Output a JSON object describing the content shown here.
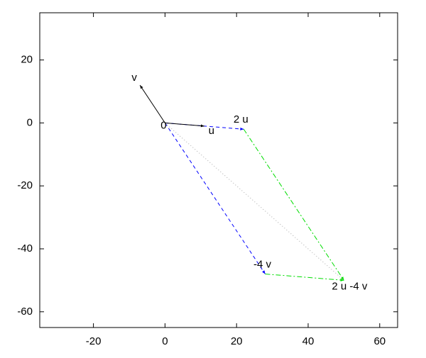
{
  "chart_data": {
    "type": "vector",
    "xlim": [
      -35,
      65
    ],
    "ylim": [
      -65,
      35
    ],
    "xticks": [
      -20,
      0,
      20,
      40,
      60
    ],
    "yticks": [
      -60,
      -40,
      -20,
      0,
      20
    ],
    "segments": [
      {
        "from": [
          0,
          0
        ],
        "to": [
          22,
          -2
        ],
        "color": "#0000ff",
        "style": "dashed",
        "arrow": true
      },
      {
        "from": [
          0,
          0
        ],
        "to": [
          28,
          -48
        ],
        "color": "#0000ff",
        "style": "dashed",
        "arrow": true
      },
      {
        "from": [
          22,
          -2
        ],
        "to": [
          50,
          -50
        ],
        "color": "#00dd00",
        "style": "dashdot",
        "arrow": true
      },
      {
        "from": [
          28,
          -48
        ],
        "to": [
          50,
          -50
        ],
        "color": "#00dd00",
        "style": "dashdot",
        "arrow": true
      },
      {
        "from": [
          0,
          0
        ],
        "to": [
          50,
          -50
        ],
        "color": "#aaaaaa",
        "style": "dotted",
        "arrow": false
      },
      {
        "from": [
          0,
          0
        ],
        "to": [
          11,
          -1
        ],
        "color": "#000000",
        "style": "solid",
        "arrow": true
      },
      {
        "from": [
          0,
          0
        ],
        "to": [
          -7,
          12
        ],
        "color": "#000000",
        "style": "solid",
        "arrow": true
      }
    ],
    "points": [
      {
        "label": "0",
        "x": 0,
        "y": 0
      },
      {
        "label": "u",
        "x": 11,
        "y": -1
      },
      {
        "label": "v",
        "x": -7,
        "y": 12
      },
      {
        "label": "2 u",
        "x": 22,
        "y": -2
      },
      {
        "label": "-4 v",
        "x": 28,
        "y": -48
      },
      {
        "label": "2 u -4 v",
        "x": 50,
        "y": -50
      }
    ]
  }
}
